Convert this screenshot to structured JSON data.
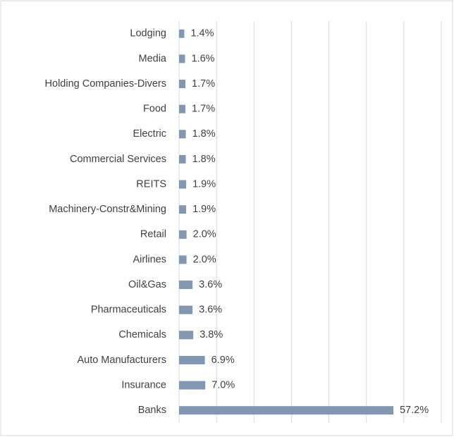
{
  "chart_data": {
    "type": "bar",
    "orientation": "horizontal",
    "categories": [
      "Lodging",
      "Media",
      "Holding Companies-Divers",
      "Food",
      "Electric",
      "Commercial Services",
      "REITS",
      "Machinery-Constr&Mining",
      "Retail",
      "Airlines",
      "Oil&Gas",
      "Pharmaceuticals",
      "Chemicals",
      "Auto Manufacturers",
      "Insurance",
      "Banks"
    ],
    "values": [
      1.4,
      1.6,
      1.7,
      1.7,
      1.8,
      1.8,
      1.9,
      1.9,
      2.0,
      2.0,
      3.6,
      3.6,
      3.8,
      6.9,
      7.0,
      57.2
    ],
    "value_labels": [
      "1.4%",
      "1.6%",
      "1.7%",
      "1.7%",
      "1.8%",
      "1.8%",
      "1.9%",
      "1.9%",
      "2.0%",
      "2.0%",
      "3.6%",
      "3.6%",
      "3.8%",
      "6.9%",
      "7.0%",
      "57.2%"
    ],
    "color": "#8497b0",
    "xlim": [
      0,
      70
    ],
    "xticks": [
      0,
      10,
      20,
      30,
      40,
      50,
      60,
      70
    ],
    "grid": true
  }
}
